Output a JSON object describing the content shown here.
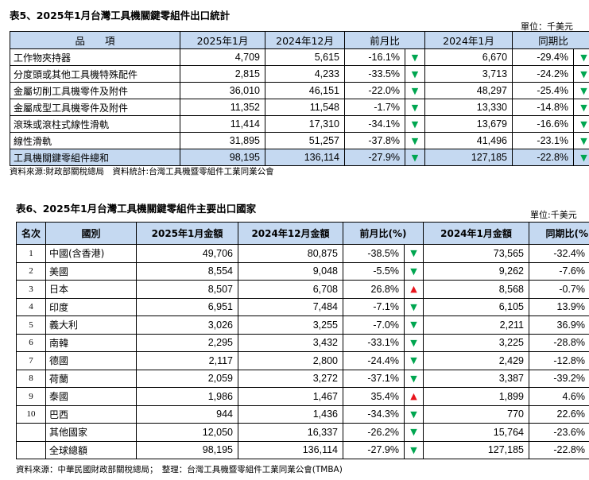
{
  "table5": {
    "caption": "表5、2025年1月台灣工具機關鍵零組件出口統計",
    "unit": "單位：千美元",
    "headers": [
      "品　　項",
      "2025年1月",
      "2024年12月",
      "前月比",
      "2024年1月",
      "同期比"
    ],
    "rows": [
      {
        "item": "工作物夾持器",
        "jan2025": "4,709",
        "dec2024": "5,615",
        "mom": "-16.1%",
        "mom_dir": "down",
        "jan2024": "6,670",
        "yoy": "-29.4%",
        "yoy_dir": "down"
      },
      {
        "item": "分度頭或其他工具機特殊配件",
        "jan2025": "2,815",
        "dec2024": "4,233",
        "mom": "-33.5%",
        "mom_dir": "down",
        "jan2024": "3,713",
        "yoy": "-24.2%",
        "yoy_dir": "down"
      },
      {
        "item": "金屬切削工具機零件及附件",
        "jan2025": "36,010",
        "dec2024": "46,151",
        "mom": "-22.0%",
        "mom_dir": "down",
        "jan2024": "48,297",
        "yoy": "-25.4%",
        "yoy_dir": "down"
      },
      {
        "item": "金屬成型工具機零件及附件",
        "jan2025": "11,352",
        "dec2024": "11,548",
        "mom": "-1.7%",
        "mom_dir": "down",
        "jan2024": "13,330",
        "yoy": "-14.8%",
        "yoy_dir": "down"
      },
      {
        "item": "滾珠或滾柱式線性滑軌",
        "jan2025": "11,414",
        "dec2024": "17,310",
        "mom": "-34.1%",
        "mom_dir": "down",
        "jan2024": "13,679",
        "yoy": "-16.6%",
        "yoy_dir": "down"
      },
      {
        "item": "線性滑軌",
        "jan2025": "31,895",
        "dec2024": "51,257",
        "mom": "-37.8%",
        "mom_dir": "down",
        "jan2024": "41,496",
        "yoy": "-23.1%",
        "yoy_dir": "down"
      },
      {
        "item": "工具機關鍵零組件總和",
        "jan2025": "98,195",
        "dec2024": "136,114",
        "mom": "-27.9%",
        "mom_dir": "down",
        "jan2024": "127,185",
        "yoy": "-22.8%",
        "yoy_dir": "down",
        "total": true
      }
    ],
    "source": "資料來源:財政部關稅總局　資料統計:台灣工具機暨零組件工業同業公會"
  },
  "table6": {
    "caption": "表6、2025年1月台灣工具機關鍵零組件主要出口國家",
    "unit": "單位:千美元",
    "headers": [
      "名次",
      "國別",
      "2025年1月金額",
      "2024年12月金額",
      "前月比(%)",
      "2024年1月金額",
      "同期比(%)"
    ],
    "rows": [
      {
        "rank": "1",
        "country": "中國(含香港)",
        "jan2025": "49,706",
        "dec2024": "80,875",
        "mom": "-38.5%",
        "mom_dir": "down",
        "jan2024": "73,565",
        "yoy": "-32.4%",
        "yoy_dir": "down"
      },
      {
        "rank": "2",
        "country": "美國",
        "jan2025": "8,554",
        "dec2024": "9,048",
        "mom": "-5.5%",
        "mom_dir": "down",
        "jan2024": "9,262",
        "yoy": "-7.6%",
        "yoy_dir": "down"
      },
      {
        "rank": "3",
        "country": "日本",
        "jan2025": "8,507",
        "dec2024": "6,708",
        "mom": "26.8%",
        "mom_dir": "up",
        "jan2024": "8,568",
        "yoy": "-0.7%",
        "yoy_dir": "down"
      },
      {
        "rank": "4",
        "country": "印度",
        "jan2025": "6,951",
        "dec2024": "7,484",
        "mom": "-7.1%",
        "mom_dir": "down",
        "jan2024": "6,105",
        "yoy": "13.9%",
        "yoy_dir": "up"
      },
      {
        "rank": "5",
        "country": "義大利",
        "jan2025": "3,026",
        "dec2024": "3,255",
        "mom": "-7.0%",
        "mom_dir": "down",
        "jan2024": "2,211",
        "yoy": "36.9%",
        "yoy_dir": "up"
      },
      {
        "rank": "6",
        "country": "南韓",
        "jan2025": "2,295",
        "dec2024": "3,432",
        "mom": "-33.1%",
        "mom_dir": "down",
        "jan2024": "3,225",
        "yoy": "-28.8%",
        "yoy_dir": "down"
      },
      {
        "rank": "7",
        "country": "德國",
        "jan2025": "2,117",
        "dec2024": "2,800",
        "mom": "-24.4%",
        "mom_dir": "down",
        "jan2024": "2,429",
        "yoy": "-12.8%",
        "yoy_dir": "down"
      },
      {
        "rank": "8",
        "country": "荷蘭",
        "jan2025": "2,059",
        "dec2024": "3,272",
        "mom": "-37.1%",
        "mom_dir": "down",
        "jan2024": "3,387",
        "yoy": "-39.2%",
        "yoy_dir": "down"
      },
      {
        "rank": "9",
        "country": "泰國",
        "jan2025": "1,986",
        "dec2024": "1,467",
        "mom": "35.4%",
        "mom_dir": "up",
        "jan2024": "1,899",
        "yoy": "4.6%",
        "yoy_dir": "up"
      },
      {
        "rank": "10",
        "country": "巴西",
        "jan2025": "944",
        "dec2024": "1,436",
        "mom": "-34.3%",
        "mom_dir": "down",
        "jan2024": "770",
        "yoy": "22.6%",
        "yoy_dir": "up"
      },
      {
        "rank": "",
        "country": "其他國家",
        "jan2025": "12,050",
        "dec2024": "16,337",
        "mom": "-26.2%",
        "mom_dir": "down",
        "jan2024": "15,764",
        "yoy": "-23.6%",
        "yoy_dir": "down"
      },
      {
        "rank": "",
        "country": "全球總額",
        "jan2025": "98,195",
        "dec2024": "136,114",
        "mom": "-27.9%",
        "mom_dir": "down",
        "jan2024": "127,185",
        "yoy": "-22.8%",
        "yoy_dir": "down"
      }
    ],
    "source": "資料來源：中華民國財政部關稅總局；　整理：台灣工具機暨零組件工業同業公會(TMBA)"
  },
  "icons": {
    "down": "down-triangle-icon",
    "up": "up-triangle-icon"
  },
  "colors": {
    "header_bg": "#c5d9f1",
    "total_bg": "#c5d9f1",
    "down_arrow": "#00a650",
    "up_arrow": "#e8141c"
  }
}
